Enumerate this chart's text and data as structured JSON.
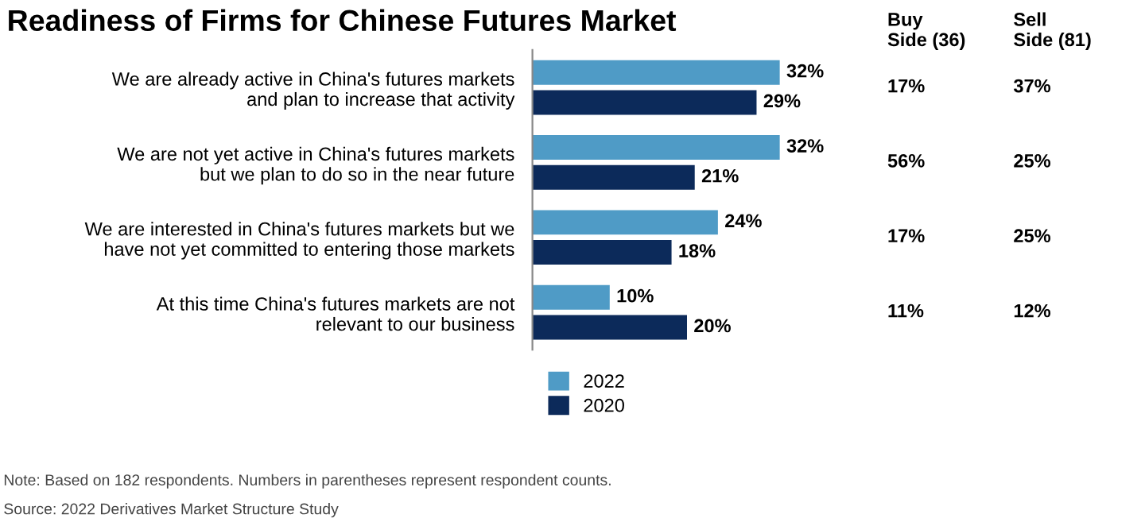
{
  "chart_data": {
    "type": "bar",
    "orientation": "horizontal",
    "title": "Readiness of Firms for Chinese Futures Market",
    "categories": [
      "We are already active in China's futures markets\nand plan to increase that activity",
      "We are not yet active in China's futures markets\nbut we plan to do so in the near future",
      "We are interested in China's futures markets but we\nhave not yet committed to entering those markets",
      "At this time China's futures markets are not\nrelevant to our business"
    ],
    "series": [
      {
        "name": "2022",
        "color": "#4f9bc6",
        "values": [
          32,
          32,
          24,
          10
        ],
        "value_labels": [
          "32%",
          "32%",
          "24%",
          "10%"
        ]
      },
      {
        "name": "2020",
        "color": "#0c2a5a",
        "values": [
          29,
          21,
          18,
          20
        ],
        "value_labels": [
          "29%",
          "21%",
          "18%",
          "20%"
        ]
      }
    ],
    "legend": "bottom",
    "annotations": [
      "Buy\nSide (36)",
      "Sell\nSide (81)",
      "17%",
      "37%",
      "56%",
      "25%",
      "17%",
      "25%",
      "11%",
      "12%",
      "Note: Based on 182 respondents. Numbers in parentheses represent respondent counts.",
      "Source: 2022 Derivatives Market Structure Study"
    ]
  }
}
